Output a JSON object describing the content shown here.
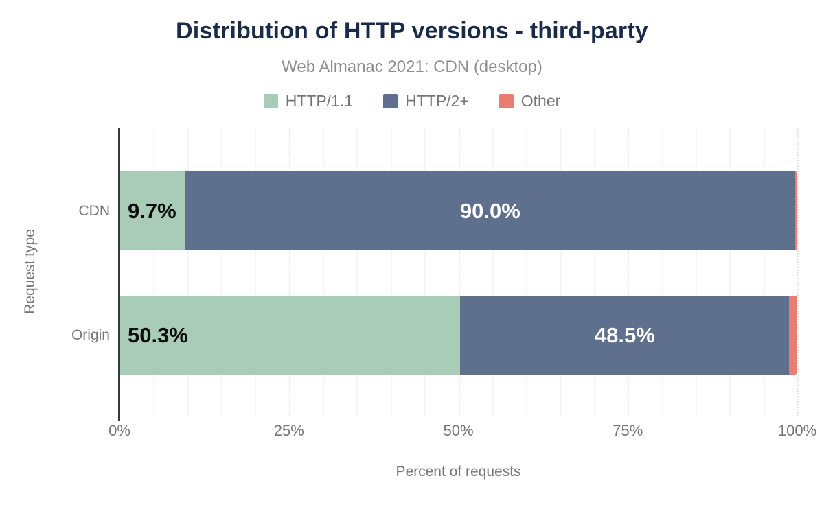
{
  "chart_data": {
    "type": "bar",
    "orientation": "horizontal",
    "stacked": true,
    "title": "Distribution of HTTP versions - third-party",
    "subtitle": "Web Almanac 2021: CDN (desktop)",
    "xlabel": "Percent of requests",
    "ylabel": "Request type",
    "xlim": [
      0,
      100
    ],
    "x_ticks": [
      {
        "label": "0%",
        "value": 0
      },
      {
        "label": "25%",
        "value": 25
      },
      {
        "label": "50%",
        "value": 50
      },
      {
        "label": "75%",
        "value": 75
      },
      {
        "label": "100%",
        "value": 100
      }
    ],
    "grid": {
      "minor_step": 5,
      "major_step": 25,
      "grid_on": true
    },
    "legend_position": "top",
    "categories": [
      "CDN",
      "Origin"
    ],
    "series": [
      {
        "name": "HTTP/1.1",
        "color": "#a9ccb9",
        "values": [
          9.7,
          50.3
        ],
        "labels": [
          "9.7%",
          "50.3%"
        ],
        "label_color": "#0d0d0d",
        "label_align": "left"
      },
      {
        "name": "HTTP/2+",
        "color": "#5e708e",
        "values": [
          90.0,
          48.5
        ],
        "labels": [
          "90.0%",
          "48.5%"
        ],
        "label_color": "#ffffff",
        "label_align": "center"
      },
      {
        "name": "Other",
        "color": "#e97d70",
        "values": [
          0.3,
          1.2
        ],
        "labels": [
          "",
          ""
        ],
        "label_color": "",
        "label_align": "none"
      }
    ]
  },
  "colors": {
    "background": "#ffffff",
    "title": "#1a2b4a",
    "subtitle": "#8e8e8e",
    "legend_text": "#757575",
    "axis_text": "#757575",
    "axis_line": "#2f3b47",
    "grid_minor": "#f5f5f5",
    "grid_major": "#e4e4e4"
  }
}
